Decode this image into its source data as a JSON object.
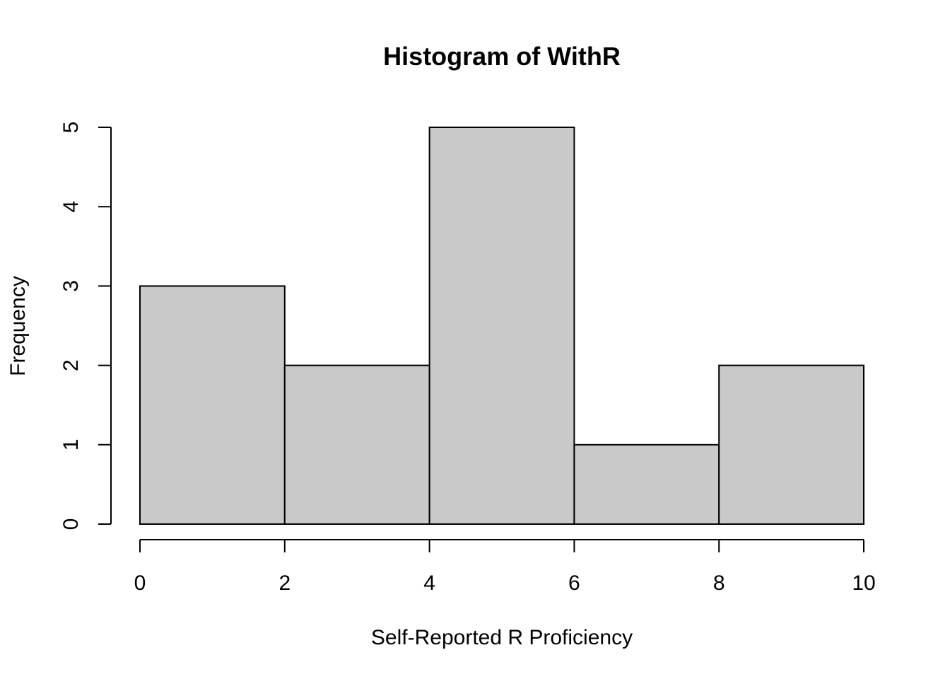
{
  "chart_data": {
    "type": "bar",
    "title": "Histogram of WithR",
    "xlabel": "Self-Reported R Proficiency",
    "ylabel": "Frequency",
    "bin_edges": [
      0,
      2,
      4,
      6,
      8,
      10
    ],
    "values": [
      3,
      2,
      5,
      1,
      2
    ],
    "xlim": [
      0,
      10
    ],
    "ylim": [
      0,
      5
    ],
    "x_ticks": [
      0,
      2,
      4,
      6,
      8,
      10
    ],
    "y_ticks": [
      0,
      1,
      2,
      3,
      4,
      5
    ],
    "grid": false,
    "bar_color": "#c9c9c9"
  }
}
